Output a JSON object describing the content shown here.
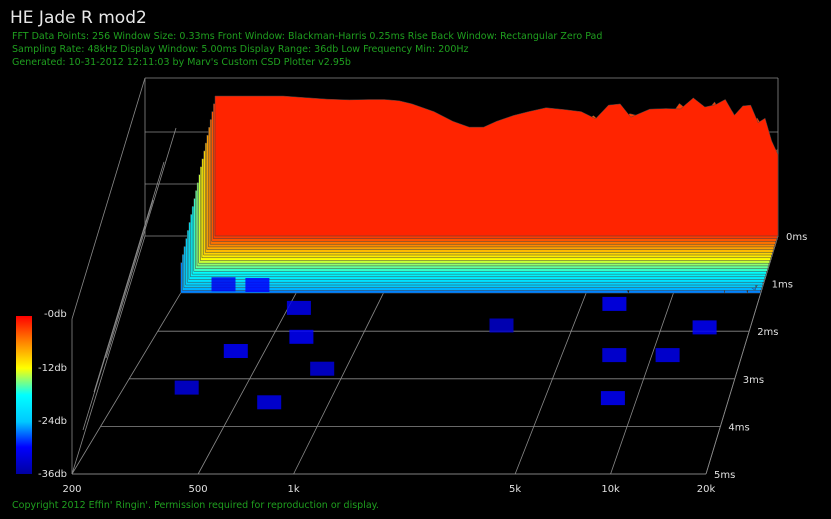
{
  "header": {
    "title": "HE Jade R mod2",
    "info_line1": "FFT Data Points: 256  Window Size: 0.33ms   Front Window: Blackman-Harris 0.25ms Rise   Back Window: Rectangular Zero Pad",
    "info_line2": "Sampling Rate: 48kHz  Display Window: 5.00ms   Display Range: 36db  Low Frequency Min: 200Hz",
    "info_line3": "Generated: 10-31-2012 12:11:03 by Marv's Custom CSD Plotter v2.95b"
  },
  "footer": {
    "copyright": "Copyright 2012 Effin' Ringin'. Permission required for reproduction or display."
  },
  "colors": {
    "background": "#000000",
    "info_text": "#1f9f1f",
    "grid": "#8a8a8a"
  },
  "chart_data": {
    "type": "waterfall",
    "x_axis": {
      "scale": "log",
      "range": [
        200,
        20000
      ],
      "ticks": [
        200,
        500,
        1000,
        5000,
        10000,
        20000
      ],
      "tick_labels": [
        "200",
        "500",
        "1k",
        "5k",
        "10k",
        "20k"
      ]
    },
    "time_axis": {
      "range_ms": [
        0,
        5
      ],
      "ticks": [
        0,
        1,
        2,
        3,
        4,
        5
      ],
      "tick_labels": [
        "0ms",
        "1ms",
        "2ms",
        "3ms",
        "4ms",
        "5ms"
      ]
    },
    "z_axis": {
      "range_db": [
        -36,
        0
      ],
      "tick_labels": [
        "-0db",
        "-12db",
        "-24db",
        "-36db"
      ],
      "tick_values": [
        0,
        -12,
        -24,
        -36
      ]
    },
    "colorbar": [
      "#0000a0",
      "#0000ff",
      "#00c8ff",
      "#00ffff",
      "#ffff00",
      "#ff8000",
      "#ff0000"
    ],
    "front_slice": {
      "freq": [
        200,
        250,
        300,
        350,
        400,
        500,
        600,
        700,
        800,
        900,
        1000,
        1200,
        1400,
        1600,
        1800,
        2000,
        2300,
        2600,
        3000,
        3500,
        4000,
        4500,
        5000,
        5500,
        6000,
        7000,
        8000,
        9000,
        10000,
        11000,
        12000,
        13000,
        14000,
        15000,
        16000,
        17000,
        18000,
        19000,
        20000
      ],
      "db": [
        0,
        0,
        0,
        0,
        -0.3,
        -0.8,
        -1.0,
        -0.9,
        -0.9,
        -1.2,
        -2.0,
        -4.0,
        -6.5,
        -8.0,
        -8.0,
        -6.5,
        -5.0,
        -4.0,
        -3.0,
        -3.5,
        -4.0,
        -4.0,
        -3.0,
        -3.0,
        -3.5,
        -5.0,
        -3.0,
        -2.0,
        -2.5,
        -1.5,
        -2.0,
        -2.5,
        -3.0,
        -3.5,
        -3.0,
        -5.0,
        -7.5,
        -11.0,
        -14.0
      ]
    },
    "decay_step_db_per_ms": [
      6.5,
      6.5,
      7,
      8,
      9
    ]
  }
}
